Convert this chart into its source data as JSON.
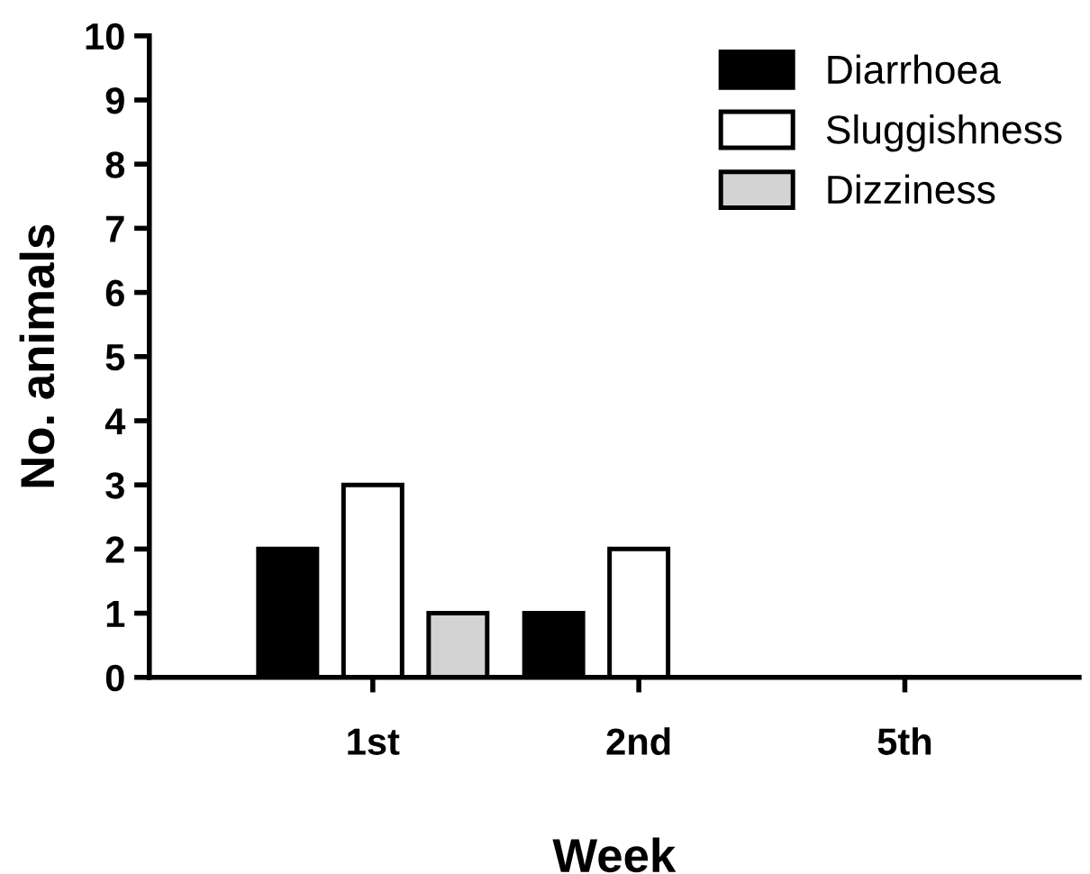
{
  "chart_data": {
    "type": "bar",
    "xlabel": "Week",
    "ylabel": "No. animals",
    "categories": [
      "1st",
      "2nd",
      "5th"
    ],
    "series": [
      {
        "name": "Diarrhoea",
        "color": "#000000",
        "values": [
          2,
          1,
          null
        ]
      },
      {
        "name": "Sluggishness",
        "color": "#ffffff",
        "values": [
          3,
          2,
          null
        ]
      },
      {
        "name": "Dizziness",
        "color": "#d3d3d3",
        "values": [
          1,
          null,
          null
        ]
      }
    ],
    "ylim": [
      0,
      10
    ],
    "yticks": [
      0,
      1,
      2,
      3,
      4,
      5,
      6,
      7,
      8,
      9,
      10
    ],
    "grid": false,
    "legend": "top right"
  }
}
